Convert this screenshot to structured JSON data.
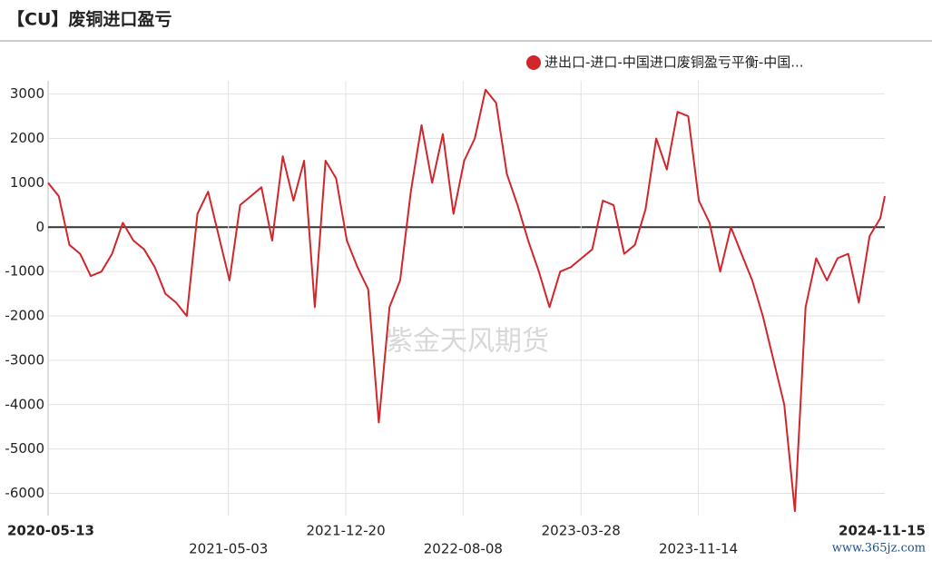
{
  "chart_data": {
    "type": "line",
    "title": "【CU】废铜进口盈亏",
    "watermark": "紫金天风期货",
    "site_mark": "www.365jz.com",
    "x": [
      "2020-05-13",
      "2020-06-03",
      "2020-06-24",
      "2020-07-15",
      "2020-08-05",
      "2020-08-26",
      "2020-09-16",
      "2020-10-07",
      "2020-10-28",
      "2020-11-18",
      "2020-12-09",
      "2020-12-30",
      "2021-01-20",
      "2021-02-10",
      "2021-03-03",
      "2021-03-24",
      "2021-04-14",
      "2021-05-05",
      "2021-05-26",
      "2021-06-16",
      "2021-07-07",
      "2021-07-28",
      "2021-08-18",
      "2021-09-08",
      "2021-09-29",
      "2021-10-20",
      "2021-11-10",
      "2021-12-01",
      "2021-12-22",
      "2022-01-12",
      "2022-02-02",
      "2022-02-23",
      "2022-03-16",
      "2022-04-06",
      "2022-04-27",
      "2022-05-18",
      "2022-06-08",
      "2022-06-29",
      "2022-07-20",
      "2022-08-10",
      "2022-08-31",
      "2022-09-21",
      "2022-10-12",
      "2022-11-02",
      "2022-11-23",
      "2022-12-14",
      "2023-01-04",
      "2023-01-25",
      "2023-02-15",
      "2023-03-08",
      "2023-03-29",
      "2023-04-19",
      "2023-05-10",
      "2023-05-31",
      "2023-06-21",
      "2023-07-12",
      "2023-08-02",
      "2023-08-23",
      "2023-09-13",
      "2023-10-04",
      "2023-10-25",
      "2023-11-15",
      "2023-12-06",
      "2023-12-27",
      "2024-01-17",
      "2024-02-07",
      "2024-02-28",
      "2024-03-20",
      "2024-04-10",
      "2024-05-01",
      "2024-05-22",
      "2024-06-12",
      "2024-07-03",
      "2024-07-24",
      "2024-08-14",
      "2024-09-04",
      "2024-09-25",
      "2024-10-16",
      "2024-11-06",
      "2024-11-15"
    ],
    "series": [
      {
        "name": "进出口-进口-中国进口废铜盈亏平衡-中国...",
        "color": "#d0262c",
        "values": [
          1000,
          700,
          -400,
          -600,
          -1100,
          -1000,
          -600,
          100,
          -300,
          -500,
          -900,
          -1500,
          -1700,
          -2000,
          300,
          800,
          -200,
          -1200,
          500,
          700,
          900,
          -300,
          1600,
          600,
          1500,
          -1800,
          1500,
          1100,
          -300,
          -900,
          -1400,
          -4400,
          -1800,
          -1200,
          800,
          2300,
          1000,
          2100,
          300,
          1500,
          2000,
          3100,
          2800,
          1200,
          500,
          -300,
          -1000,
          -1800,
          -1000,
          -900,
          -700,
          -500,
          600,
          500,
          -600,
          -400,
          400,
          2000,
          1300,
          2600,
          2500,
          600,
          100,
          -1000,
          0,
          -600,
          -1200,
          -2000,
          -3000,
          -4000,
          -6400,
          -1800,
          -700,
          -1200,
          -700,
          -600,
          -1700,
          -200,
          200,
          700
        ]
      }
    ],
    "xlim": [
      "2020-05-13",
      "2024-11-15"
    ],
    "xticks": [
      "2020-05-13",
      "2021-05-03",
      "2021-12-20",
      "2022-08-08",
      "2023-03-28",
      "2023-11-14",
      "2024-11-15"
    ],
    "ylim": [
      -6500,
      3300
    ],
    "yticks": [
      3000,
      2000,
      1000,
      0,
      -1000,
      -2000,
      -3000,
      -4000,
      -5000,
      -6000
    ],
    "grid": true
  }
}
